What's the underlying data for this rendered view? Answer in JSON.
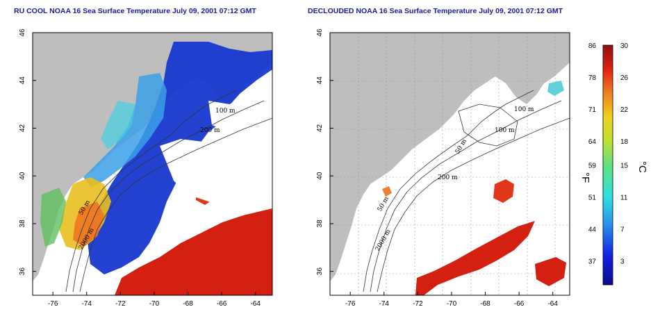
{
  "titles": {
    "left": "RU COOL NOAA 16 Sea Surface Temperature July 09, 2001 07:12 GMT",
    "right": "DECLOUDED NOAA 16 Sea Surface Temperature July 09, 2001 07:12 GMT"
  },
  "axes": {
    "x_ticks": [
      "-76",
      "-74",
      "-72",
      "-70",
      "-68",
      "-66",
      "-64"
    ],
    "x_values": [
      -76,
      -74,
      -72,
      -70,
      -68,
      -66,
      -64
    ],
    "y_ticks": [
      "46",
      "44",
      "42",
      "40",
      "38",
      "36"
    ],
    "y_values": [
      46,
      44,
      42,
      40,
      38,
      36
    ],
    "xlim": [
      -77.2,
      -63.0
    ],
    "ylim": [
      35.0,
      46.0
    ]
  },
  "contour_labels": {
    "left": [
      "100 m",
      "200 m",
      "50 m",
      "2000 m"
    ],
    "right": [
      "100 m",
      "100 m",
      "50 m",
      "200 m",
      "50 m",
      "2000 m"
    ]
  },
  "colorbar": {
    "fahrenheit_labels": [
      "86",
      "78",
      "71",
      "64",
      "59",
      "51",
      "44",
      "37"
    ],
    "celsius_labels": [
      "30",
      "26",
      "22",
      "18",
      "15",
      "11",
      "7",
      "3"
    ],
    "fahrenheit_unit": "°F",
    "celsius_unit": "°C",
    "celsius_range": [
      0,
      30
    ]
  },
  "colors": {
    "land": "#bebebe",
    "ocean_cloud": "#ffffff",
    "title": "#1a1a9c",
    "warm": "#d42010",
    "cold": "#1030c8"
  }
}
